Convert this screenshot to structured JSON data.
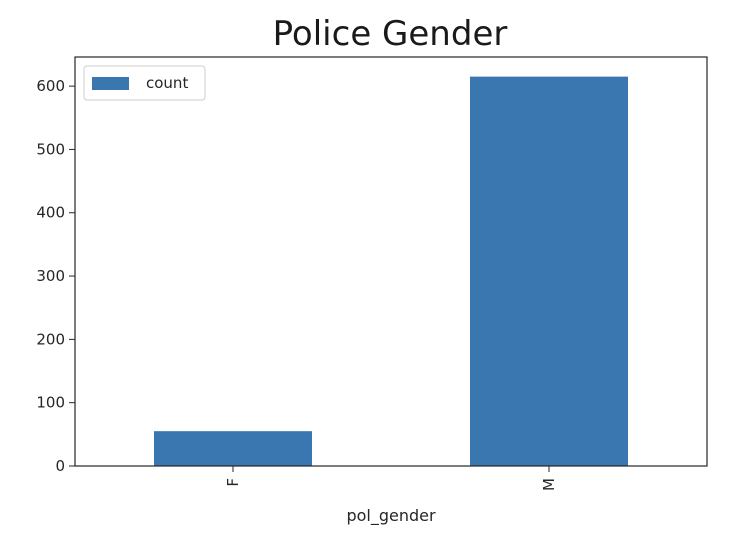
{
  "chart_data": {
    "type": "bar",
    "title": "Police Gender",
    "xlabel": "pol_gender",
    "ylabel": "",
    "categories": [
      "F",
      "M"
    ],
    "series": [
      {
        "name": "count",
        "values": [
          55,
          615
        ]
      }
    ],
    "yticks": [
      0,
      100,
      200,
      300,
      400,
      500,
      600
    ],
    "ylim": [
      0,
      646
    ],
    "grid": false,
    "legend_position": "top-left",
    "colors": {
      "bar": "#3a76af",
      "axes": "#262626",
      "legend_border": "#cccccc"
    }
  }
}
